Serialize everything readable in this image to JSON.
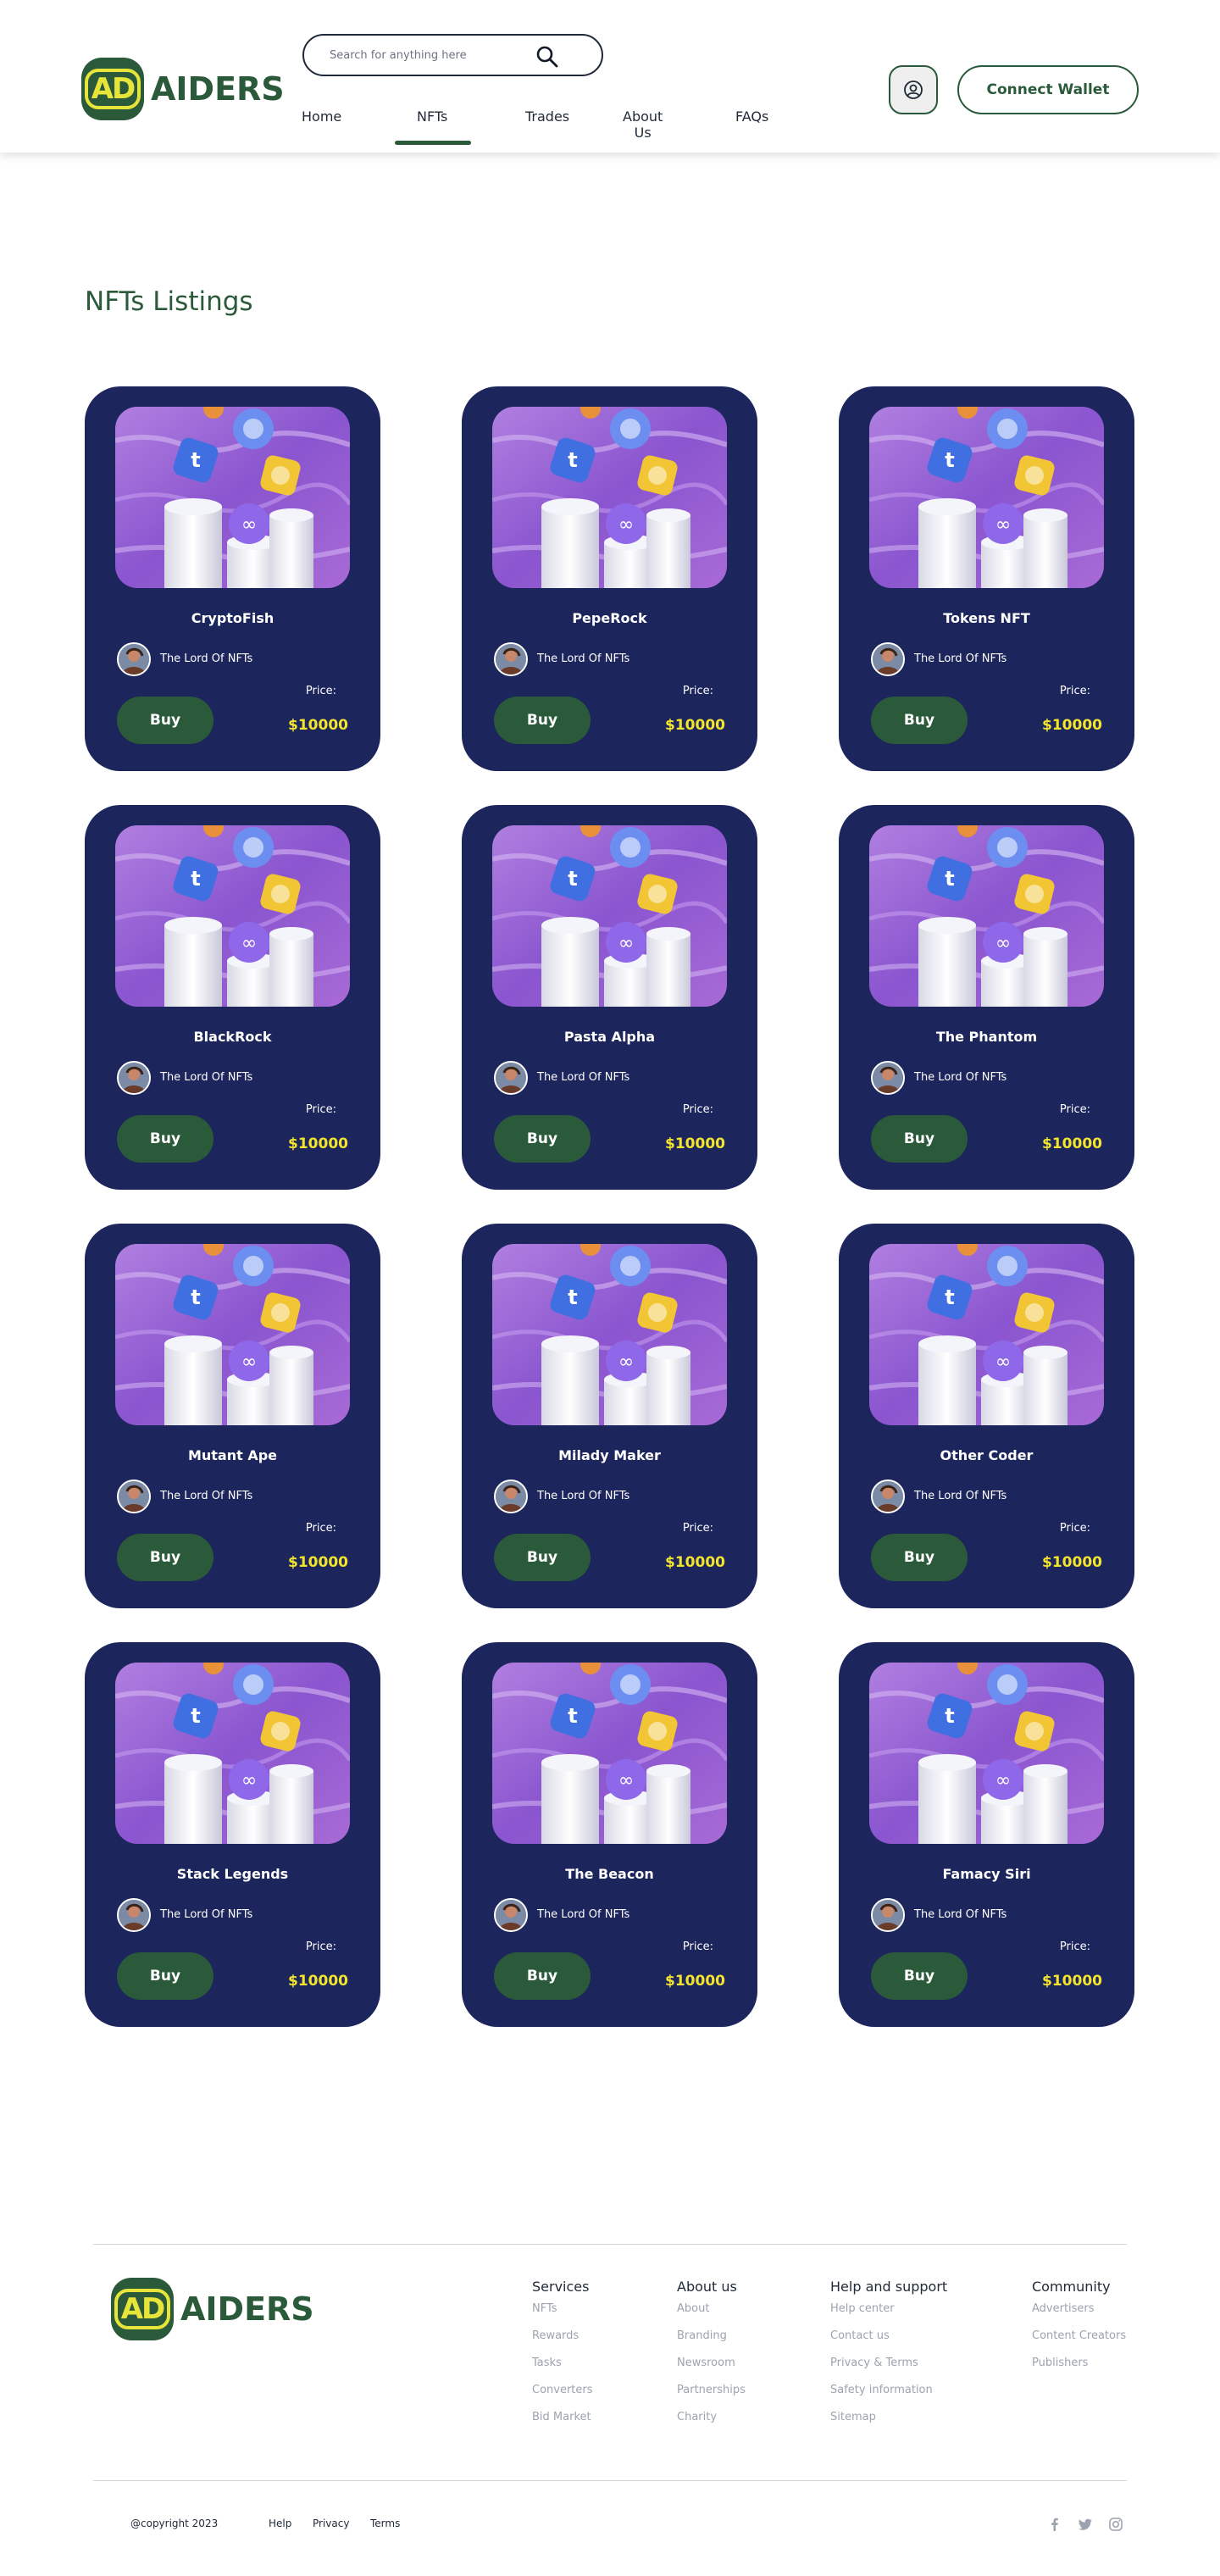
{
  "brand": {
    "monogram": "AD",
    "name": "AIDERS"
  },
  "search": {
    "placeholder": "Search for anything here"
  },
  "nav": [
    {
      "label": "Home",
      "active": false
    },
    {
      "label": "NFTs",
      "active": true
    },
    {
      "label": "Trades",
      "active": false
    },
    {
      "label": "About Us",
      "active": false
    },
    {
      "label": "FAQs",
      "active": false
    }
  ],
  "header": {
    "wallet_label": "Connect Wallet",
    "user_icon": "user-circle-icon"
  },
  "listings": {
    "title": "NFTs Listings",
    "items": [
      {
        "name": "CryptoFish",
        "owner": "The Lord Of NFTs",
        "price_label": "Price:",
        "price": "$10000",
        "buy": "Buy"
      },
      {
        "name": "PepeRock",
        "owner": "The Lord Of NFTs",
        "price_label": "Price:",
        "price": "$10000",
        "buy": "Buy"
      },
      {
        "name": "Tokens NFT",
        "owner": "The Lord Of NFTs",
        "price_label": "Price:",
        "price": "$10000",
        "buy": "Buy"
      },
      {
        "name": "BlackRock",
        "owner": "The Lord Of NFTs",
        "price_label": "Price:",
        "price": "$10000",
        "buy": "Buy"
      },
      {
        "name": "Pasta Alpha",
        "owner": "The Lord Of NFTs",
        "price_label": "Price:",
        "price": "$10000",
        "buy": "Buy"
      },
      {
        "name": "The Phantom",
        "owner": "The Lord Of NFTs",
        "price_label": "Price:",
        "price": "$10000",
        "buy": "Buy"
      },
      {
        "name": "Mutant Ape",
        "owner": "The Lord Of NFTs",
        "price_label": "Price:",
        "price": "$10000",
        "buy": "Buy"
      },
      {
        "name": "Milady Maker",
        "owner": "The Lord Of NFTs",
        "price_label": "Price:",
        "price": "$10000",
        "buy": "Buy"
      },
      {
        "name": "Other Coder",
        "owner": "The Lord Of NFTs",
        "price_label": "Price:",
        "price": "$10000",
        "buy": "Buy"
      },
      {
        "name": "Stack Legends",
        "owner": "The Lord Of NFTs",
        "price_label": "Price:",
        "price": "$10000",
        "buy": "Buy"
      },
      {
        "name": "The Beacon",
        "owner": "The Lord Of NFTs",
        "price_label": "Price:",
        "price": "$10000",
        "buy": "Buy"
      },
      {
        "name": "Famacy Siri",
        "owner": "The Lord Of NFTs",
        "price_label": "Price:",
        "price": "$10000",
        "buy": "Buy"
      }
    ]
  },
  "footer": {
    "columns": [
      {
        "title": "Services",
        "links": [
          "NFTs",
          "Rewards",
          "Tasks",
          "Converters",
          "Bid Market"
        ]
      },
      {
        "title": "About us",
        "links": [
          "About",
          "Branding",
          "Newsroom",
          "Partnerships",
          "Charity"
        ]
      },
      {
        "title": "Help and support",
        "links": [
          "Help center",
          "Contact us",
          "Privacy & Terms",
          "Safety information",
          "Sitemap"
        ]
      },
      {
        "title": "Community",
        "links": [
          "Advertisers",
          "Content Creators",
          "Publishers"
        ]
      }
    ],
    "copyright": "@copyright 2023",
    "bottom_links": [
      "Help",
      "Privacy",
      "Terms"
    ],
    "social": [
      "facebook-icon",
      "twitter-icon",
      "instagram-icon"
    ]
  },
  "colors": {
    "brand_green": "#2a5a3a",
    "brand_yellow": "#e7e53a",
    "card_navy": "#1c255c",
    "price_yellow": "#f3e52d"
  }
}
